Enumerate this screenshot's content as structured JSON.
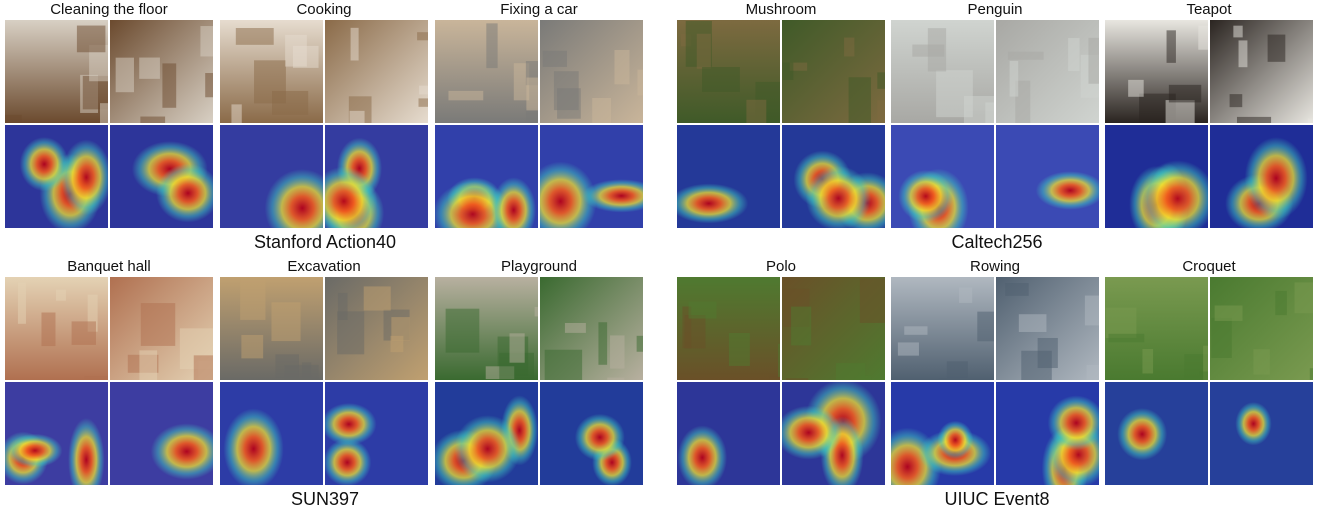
{
  "panels": [
    {
      "caption": "Stanford Action40",
      "classes": [
        "Cleaning the floor",
        "Cooking",
        "Fixing a car"
      ]
    },
    {
      "caption": "Caltech256",
      "classes": [
        "Mushroom",
        "Penguin",
        "Teapot"
      ]
    },
    {
      "caption": "SUN397",
      "classes": [
        "Banquet hall",
        "Excavation",
        "Playground"
      ]
    },
    {
      "caption": "UIUC Event8",
      "classes": [
        "Polo",
        "Rowing",
        "Croquet"
      ]
    }
  ]
}
